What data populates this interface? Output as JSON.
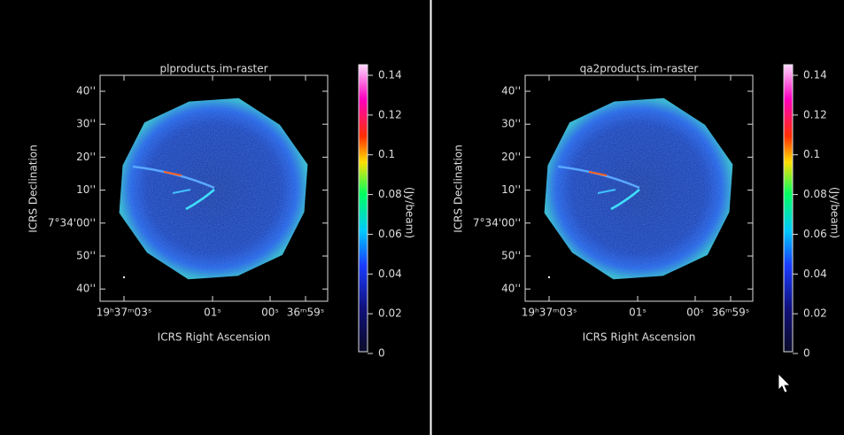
{
  "panels": [
    {
      "title": "plproducts.im-raster",
      "y_axis_label": "ICRS Declination",
      "x_axis_label": "ICRS Right Ascension",
      "y_ticks": [
        "40''",
        "30''",
        "20''",
        "10''",
        "7°34'00''",
        "50''",
        "40''"
      ],
      "x_ticks": [
        "19ʰ37ᵐ03ˢ",
        "01ˢ",
        "00ˢ",
        "36ᵐ59ˢ"
      ],
      "colorbar_ticks": [
        "0.14",
        "0.12",
        "0.1",
        "0.08",
        "0.06",
        "0.04",
        "0.02",
        "0"
      ],
      "colorbar_label": "(Jy/beam)"
    },
    {
      "title": "qa2products.im-raster",
      "y_axis_label": "ICRS Declination",
      "x_axis_label": "ICRS Right Ascension",
      "y_ticks": [
        "40''",
        "30''",
        "20''",
        "10''",
        "7°34'00''",
        "50''",
        "40''"
      ],
      "x_ticks": [
        "19ʰ37ᵐ03ˢ",
        "01ˢ",
        "00ˢ",
        "36ᵐ59ˢ"
      ],
      "colorbar_ticks": [
        "0.14",
        "0.12",
        "0.1",
        "0.08",
        "0.06",
        "0.04",
        "0.02",
        "0"
      ],
      "colorbar_label": "(Jy/beam)"
    }
  ]
}
